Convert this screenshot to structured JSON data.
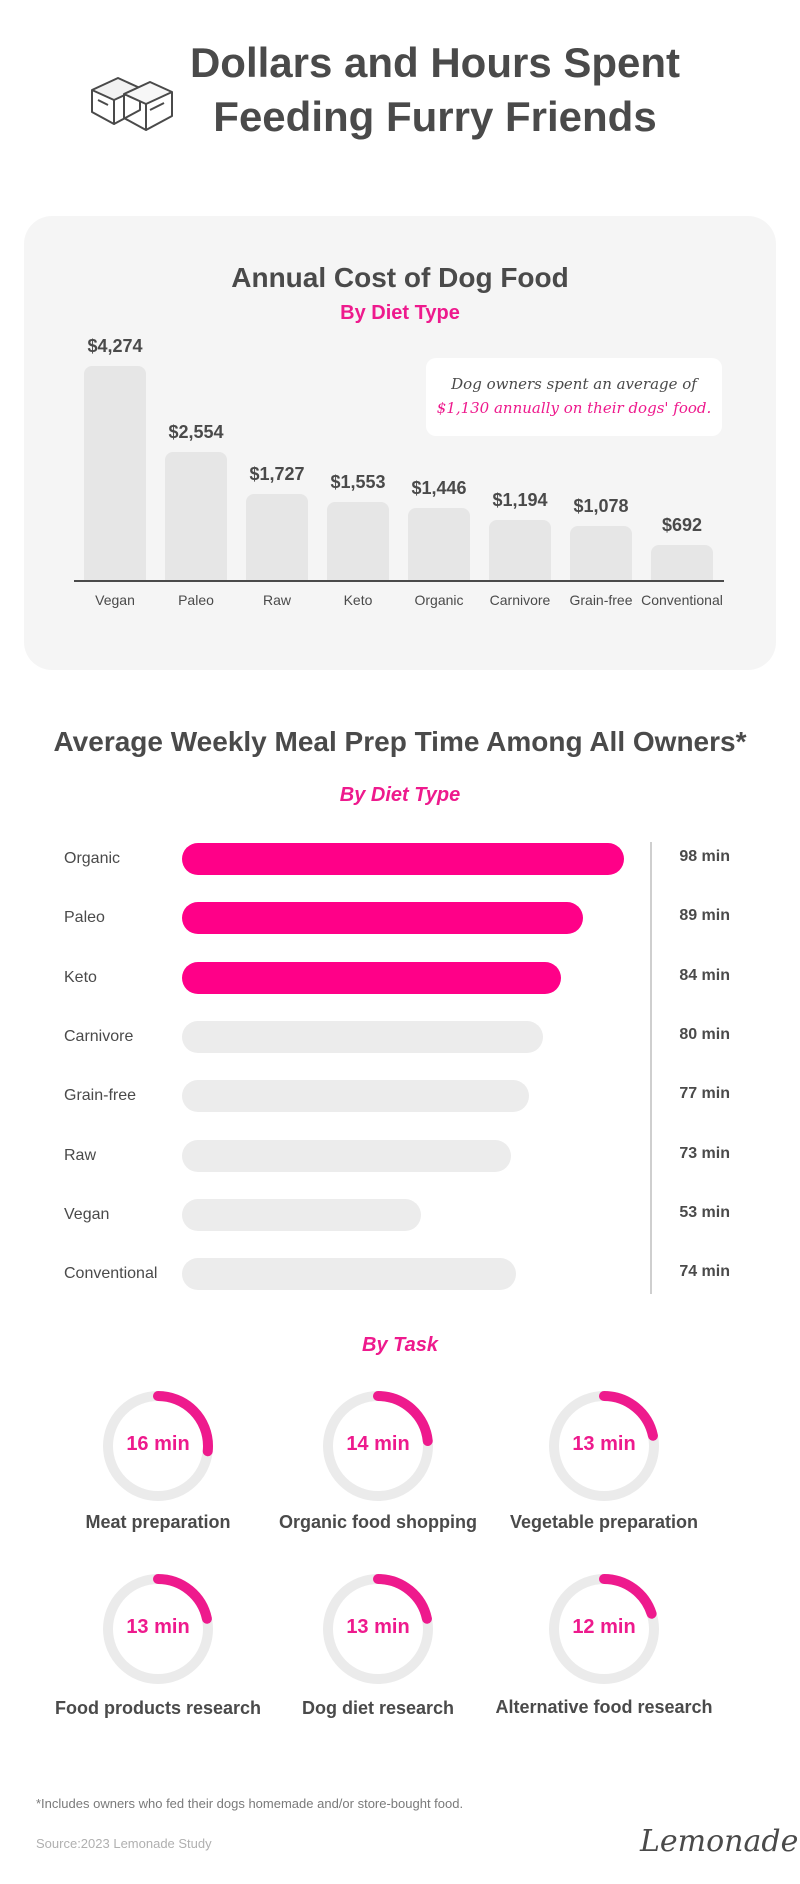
{
  "header": {
    "title_line1": "Dollars and Hours Spent",
    "title_line2": "Feeding Furry Friends"
  },
  "cost_chart": {
    "title": "Annual Cost of Dog Food",
    "subtitle": "By Diet Type",
    "note_line1": "Dog owners spent an average of",
    "note_line2": "$1,130 annually on their dogs' food.",
    "colors": {
      "bar": "#e6e6e6",
      "accent": "#ee1a8d"
    }
  },
  "prep_chart": {
    "title": "Average Weekly Meal Prep Time Among All Owners*",
    "subtitle": "By Diet Type"
  },
  "tasks": {
    "subtitle": "By Task"
  },
  "chart_data": [
    {
      "type": "bar",
      "title": "Annual Cost of Dog Food",
      "subtitle": "By Diet Type",
      "categories": [
        "Vegan",
        "Paleo",
        "Raw",
        "Keto",
        "Organic",
        "Carnivore",
        "Grain-free",
        "Conventional"
      ],
      "values": [
        4274,
        2554,
        1727,
        1553,
        1446,
        1194,
        1078,
        692
      ],
      "value_labels": [
        "$4,274",
        "$2,554",
        "$1,727",
        "$1,553",
        "$1,446",
        "$1,194",
        "$1,078",
        "$692"
      ],
      "ylim": [
        0,
        4274
      ]
    },
    {
      "type": "bar",
      "orientation": "horizontal",
      "title": "Average Weekly Meal Prep Time Among All Owners*",
      "subtitle": "By Diet Type",
      "categories": [
        "Organic",
        "Paleo",
        "Keto",
        "Carnivore",
        "Grain-free",
        "Raw",
        "Vegan",
        "Conventional"
      ],
      "values": [
        98,
        89,
        84,
        80,
        77,
        73,
        53,
        74
      ],
      "value_labels": [
        "98 min",
        "89 min",
        "84 min",
        "80 min",
        "77 min",
        "73 min",
        "53 min",
        "74 min"
      ],
      "highlighted": [
        true,
        true,
        true,
        false,
        false,
        false,
        false,
        false
      ],
      "colors": {
        "highlight": "#ff0088",
        "default": "#ececec"
      },
      "xlim": [
        0,
        98
      ]
    },
    {
      "type": "pie",
      "variant": "donut",
      "subtitle": "By Task",
      "items": [
        {
          "label": "Meat preparation",
          "value": 16,
          "value_label": "16 min"
        },
        {
          "label": "Organic food shopping",
          "value": 14,
          "value_label": "14 min"
        },
        {
          "label": "Vegetable preparation",
          "value": 13,
          "value_label": "13 min"
        },
        {
          "label": "Food products research",
          "value": 13,
          "value_label": "13 min"
        },
        {
          "label": "Dog diet research",
          "value": 13,
          "value_label": "13 min"
        },
        {
          "label": "Alternative food research",
          "value": 12,
          "value_label": "12 min"
        }
      ],
      "colors": {
        "arc": "#ee1a8d",
        "track": "#ebebeb"
      }
    }
  ],
  "footer": {
    "footnote": "*Includes owners who fed their dogs homemade and/or store-bought food.",
    "source": "Source:2023 Lemonade Study",
    "brand": "Lemonade"
  }
}
